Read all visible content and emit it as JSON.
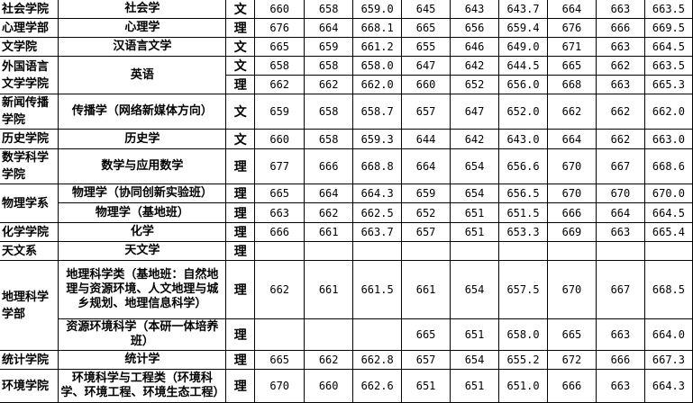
{
  "rows": [
    {
      "college": "社会学院",
      "major": "社会学",
      "type": "文",
      "values": [
        "660",
        "658",
        "659.0",
        "645",
        "643",
        "643.7",
        "664",
        "663",
        "663.5"
      ]
    },
    {
      "college": "心理学部",
      "major": "心理学",
      "type": "理",
      "values": [
        "676",
        "664",
        "668.1",
        "665",
        "656",
        "659.4",
        "676",
        "666",
        "669.5"
      ]
    },
    {
      "college": "文学院",
      "major": "汉语言文学",
      "type": "文",
      "values": [
        "665",
        "659",
        "661.2",
        "655",
        "646",
        "649.0",
        "671",
        "663",
        "664.5"
      ]
    },
    {
      "college": "外国语言文学学院",
      "major": "英语",
      "type": "文",
      "values": [
        "658",
        "658",
        "658.0",
        "647",
        "642",
        "644.5",
        "665",
        "662",
        "663.5"
      ]
    },
    {
      "type": "理",
      "values": [
        "662",
        "662",
        "662.0",
        "660",
        "652",
        "656.0",
        "668",
        "663",
        "665.3"
      ]
    },
    {
      "college": "新闻传播学院",
      "major": "传播学（网络新媒体方向）",
      "type": "文",
      "values": [
        "659",
        "658",
        "658.7",
        "657",
        "647",
        "652.0",
        "662",
        "662",
        "662.0"
      ]
    },
    {
      "college": "历史学院",
      "major": "历史学",
      "type": "文",
      "values": [
        "660",
        "658",
        "659.3",
        "644",
        "642",
        "643.0",
        "664",
        "662",
        "663.0"
      ]
    },
    {
      "college": "数学科学学院",
      "major": "数学与应用数学",
      "type": "理",
      "values": [
        "677",
        "666",
        "668.8",
        "664",
        "654",
        "656.6",
        "670",
        "667",
        "668.6"
      ]
    },
    {
      "college": "物理学系",
      "major": "物理学（协同创新实验班）",
      "type": "理",
      "values": [
        "665",
        "664",
        "664.3",
        "659",
        "654",
        "656.5",
        "670",
        "670",
        "670.0"
      ]
    },
    {
      "major": "物理学（基地班）",
      "type": "理",
      "values": [
        "663",
        "662",
        "662.5",
        "652",
        "651",
        "651.5",
        "666",
        "664",
        "664.5"
      ]
    },
    {
      "college": "化学学院",
      "major": "化学",
      "type": "理",
      "values": [
        "666",
        "661",
        "663.7",
        "657",
        "651",
        "653.3",
        "669",
        "663",
        "665.4"
      ]
    },
    {
      "college": "天文系",
      "major": "天文学",
      "type": "理",
      "values": [
        "",
        "",
        "",
        "",
        "",
        "",
        "",
        "",
        ""
      ]
    },
    {
      "college": "地理科学学部",
      "major": "地理科学类（基地班：自然地理与资源环境、人文地理与城乡规划、地理信息科学）",
      "type": "理",
      "values": [
        "662",
        "661",
        "661.5",
        "661",
        "654",
        "657.5",
        "670",
        "667",
        "668.5"
      ]
    },
    {
      "major": "资源环境科学（本研一体培养班）",
      "type": "理",
      "values": [
        "",
        "",
        "",
        "665",
        "651",
        "658.0",
        "665",
        "663",
        "664.0"
      ]
    },
    {
      "college": "统计学院",
      "major": "统计学",
      "type": "理",
      "values": [
        "665",
        "662",
        "662.8",
        "657",
        "654",
        "655.2",
        "672",
        "666",
        "667.3"
      ]
    },
    {
      "college": "环境学院",
      "major": "环境科学与工程类（环境科学、环境工程、环境生态工程）",
      "type": "理",
      "values": [
        "670",
        "660",
        "662.6",
        "651",
        "651",
        "651.0",
        "666",
        "663",
        "664.3"
      ]
    }
  ]
}
